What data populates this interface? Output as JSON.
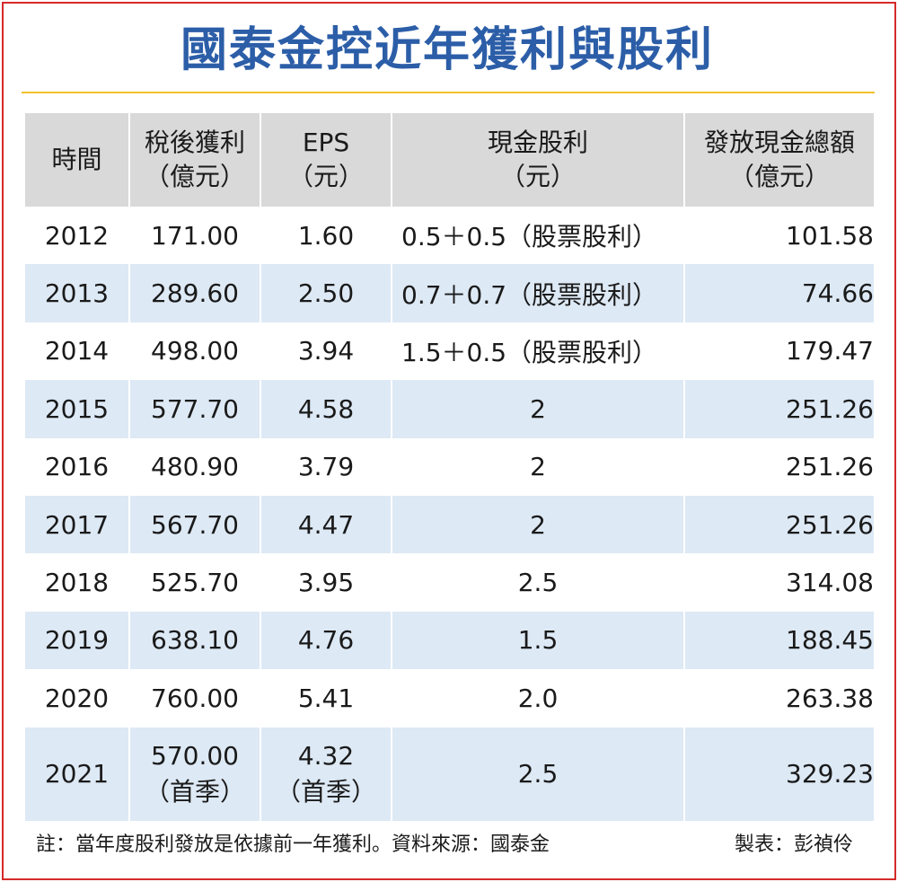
{
  "title": "國泰金控近年獲利與股利",
  "colors": {
    "title": "#2c5ea8",
    "rule": "#f3c12b",
    "frame": "#d42a2a",
    "header_bg": "#d9d9d9",
    "alt_row_bg": "#dde9f5"
  },
  "table": {
    "headers": [
      {
        "line1": "時間",
        "line2": ""
      },
      {
        "line1": "稅後獲利",
        "line2": "（億元）"
      },
      {
        "line1": "EPS",
        "line2": "（元）"
      },
      {
        "line1": "現金股利",
        "line2": "（元）"
      },
      {
        "line1": "發放現金總額",
        "line2": "（億元）"
      }
    ],
    "rows": [
      {
        "year": "2012",
        "profit": "171.00",
        "eps": "1.60",
        "dividend": "0.5＋0.5（股票股利）",
        "total": "101.58"
      },
      {
        "year": "2013",
        "profit": "289.60",
        "eps": "2.50",
        "dividend": "0.7＋0.7（股票股利）",
        "total": "74.66"
      },
      {
        "year": "2014",
        "profit": "498.00",
        "eps": "3.94",
        "dividend": "1.5＋0.5（股票股利）",
        "total": "179.47"
      },
      {
        "year": "2015",
        "profit": "577.70",
        "eps": "4.58",
        "dividend": "2",
        "total": "251.26"
      },
      {
        "year": "2016",
        "profit": "480.90",
        "eps": "3.79",
        "dividend": "2",
        "total": "251.26"
      },
      {
        "year": "2017",
        "profit": "567.70",
        "eps": "4.47",
        "dividend": "2",
        "total": "251.26"
      },
      {
        "year": "2018",
        "profit": "525.70",
        "eps": "3.95",
        "dividend": "2.5",
        "total": "314.08"
      },
      {
        "year": "2019",
        "profit": "638.10",
        "eps": "4.76",
        "dividend": "1.5",
        "total": "188.45"
      },
      {
        "year": "2020",
        "profit": "760.00",
        "eps": "5.41",
        "dividend": "2.0",
        "total": "263.38"
      }
    ],
    "last_row": {
      "year": "2021",
      "profit": "570.00",
      "profit_note": "（首季）",
      "eps": "4.32",
      "eps_note": "（首季）",
      "dividend": "2.5",
      "total": "329.23"
    }
  },
  "footer": {
    "note": "註：當年度股利發放是依據前一年獲利。資料來源：國泰金",
    "maker": "製表：彭禎伶"
  }
}
